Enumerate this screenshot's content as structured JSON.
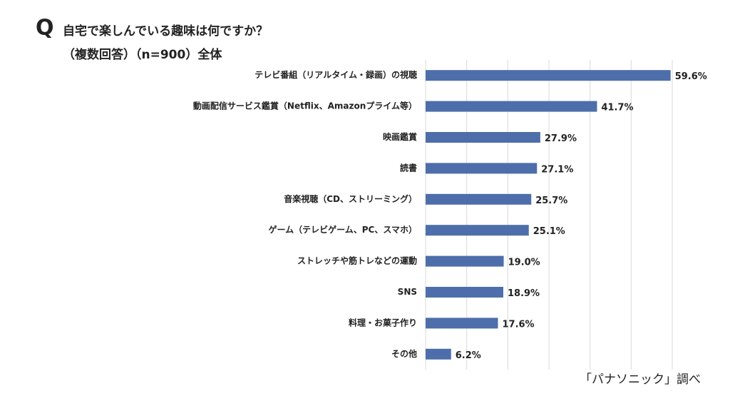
{
  "chart_data": {
    "type": "barh",
    "title_marker": "Q",
    "title": "自宅で楽しんでいる趣味は何ですか？",
    "subtitle": "（複数回答）（n=900）全体",
    "source": "「パナソニック」調べ",
    "categories": [
      "テレビ番組（リアルタイム・録画）の視聴",
      "動画配信サービス鑑賞（Netflix、Amazonプライム等）",
      "映画鑑賞",
      "読書",
      "音楽視聴（CD、ストリーミング）",
      "ゲーム（テレビゲーム、PC、スマホ）",
      "ストレッチや筋トレなどの運動",
      "SNS",
      "料理・お菓子作り",
      "その他"
    ],
    "values": [
      59.6,
      41.7,
      27.9,
      27.1,
      25.7,
      25.1,
      19.0,
      18.9,
      17.6,
      6.2
    ],
    "value_labels": [
      "59.6%",
      "41.7%",
      "27.9%",
      "27.1%",
      "25.7%",
      "25.1%",
      "19.0%",
      "18.9%",
      "17.6%",
      "6.2%"
    ],
    "color": "#4d6eaa",
    "xlim": [
      0,
      60
    ],
    "xticks": [
      0,
      10,
      20,
      30,
      40,
      50,
      60
    ],
    "grid": true
  }
}
